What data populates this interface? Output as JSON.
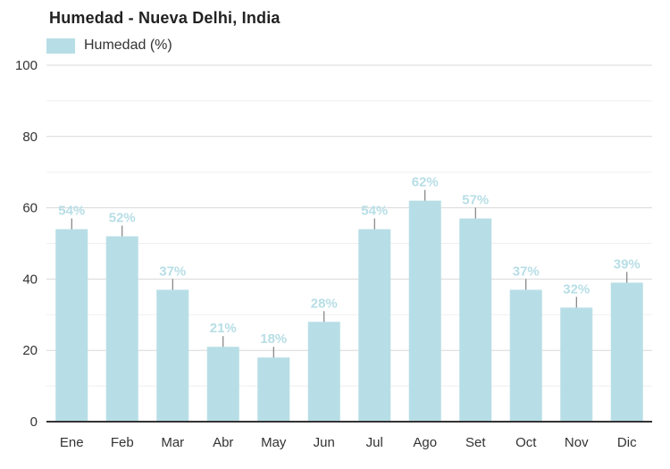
{
  "header": {
    "title": "Humedad - Nueva Delhi, India"
  },
  "legend": {
    "label": "Humedad (%)",
    "swatch_color": "#b7dee6"
  },
  "chart_data": {
    "type": "bar",
    "title": "Humedad - Nueva Delhi, India",
    "series_name": "Humedad (%)",
    "categories": [
      "Ene",
      "Feb",
      "Mar",
      "Abr",
      "May",
      "Jun",
      "Jul",
      "Ago",
      "Set",
      "Oct",
      "Nov",
      "Dic"
    ],
    "values": [
      54,
      52,
      37,
      21,
      18,
      28,
      54,
      62,
      57,
      37,
      32,
      39
    ],
    "value_labels": [
      "54%",
      "52%",
      "37%",
      "21%",
      "18%",
      "28%",
      "54%",
      "62%",
      "57%",
      "37%",
      "32%",
      "39%"
    ],
    "xlabel": "",
    "ylabel": "",
    "ylim": [
      0,
      100
    ],
    "y_major_ticks": [
      0,
      20,
      40,
      60,
      80,
      100
    ],
    "y_minor_step": 10,
    "grid": true,
    "legend_position": "top-left",
    "colors": {
      "bar": "#b7dee6",
      "value_label": "#b7dee6",
      "connector": "#666666",
      "axis_line": "#333333",
      "tick_text": "#333333",
      "gridline_major": "#d9d9d9",
      "gridline_minor": "#efefef",
      "background": "#ffffff"
    }
  }
}
